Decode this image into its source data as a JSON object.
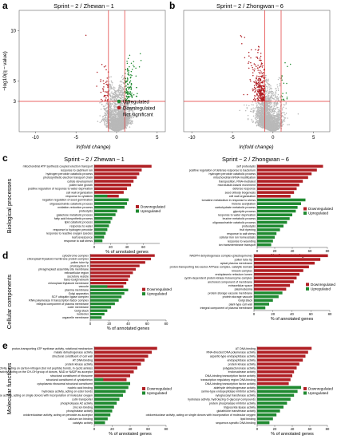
{
  "panels": [
    {
      "letter": "a",
      "type": "volcano",
      "title": "Sprint − 2 / Zhewan − 1",
      "xlabel": "ln(fold change)",
      "ylabel": "−log10(q − value)",
      "xticks": [
        "-10",
        "-5",
        "0",
        "5"
      ],
      "yticks": [
        "3",
        "5",
        "10"
      ],
      "legend": [
        "Upregulated",
        "Downregulated",
        "Not significant"
      ]
    },
    {
      "letter": "b",
      "type": "volcano",
      "title": "Sprint − 2 / Zhongwan − 6",
      "xlabel": "ln(fold change)",
      "xticks": [
        "-10",
        "-5",
        "0",
        "5"
      ]
    }
  ],
  "row_labels": [
    "Biological processes",
    "Cellular components",
    "Molecular functions"
  ],
  "row_letters": [
    "c",
    "d",
    "e"
  ],
  "col_titles": [
    "Sprint − 2 / Zhewan − 1",
    "Sprint − 2 / Zhongwan − 6"
  ],
  "bar_xlabel": "% of annotated genes",
  "bar_legend": [
    "Downregulated",
    "Upregulated"
  ],
  "colors": {
    "down": "#b01f24",
    "up": "#1f8a30",
    "ns": "#b9b9b9",
    "threshold": "#e03030"
  },
  "chart_data": [
    {
      "type": "scatter",
      "panel": "a",
      "xlim": [
        -12,
        6
      ],
      "ylim": [
        0,
        12
      ],
      "thresholds": {
        "x": [
          -1,
          1
        ],
        "y": 3
      },
      "series": [
        {
          "name": "Upregulated"
        },
        {
          "name": "Downregulated"
        },
        {
          "name": "Not significant"
        }
      ]
    },
    {
      "type": "scatter",
      "panel": "b",
      "xlim": [
        -11,
        7
      ],
      "ylim": [
        0,
        12
      ],
      "thresholds": {
        "x": [
          -1,
          1
        ],
        "y": 3
      }
    },
    {
      "type": "bar",
      "panel": "c-left",
      "xlim": [
        0,
        80
      ],
      "xticks": [
        0,
        20,
        40,
        60
      ],
      "categories": [
        "mitochondrial ATP synthesis coupled electron transport",
        "response to cadmium ion",
        "hydrogen peroxide catabolic process",
        "photosynthetic electron transport chain",
        "cuticle development",
        "pollen tube growth",
        "positive regulation of response to water deprivation",
        "cell wall organization",
        "response to cytokinin",
        "negation regulation of seed germination",
        "oligosaccharide catabolic process",
        "oxidation-reduction process",
        "proteolysis",
        "galactose metabolic process",
        "fatty acid biosynthetic process",
        "lipid catabolic process",
        "response to water",
        "response to hydrogen peroxide",
        "response to reactive oxygen species",
        "leaf senescence",
        "response to salt stress"
      ],
      "series": [
        {
          "name": "Downregulated",
          "values": [
            70,
            58,
            55,
            52,
            48,
            45,
            40,
            36,
            30,
            0,
            0,
            0,
            0,
            0,
            0,
            0,
            0,
            0,
            0,
            0,
            0
          ]
        },
        {
          "name": "Upregulated",
          "values": [
            0,
            0,
            0,
            0,
            0,
            0,
            0,
            0,
            16,
            42,
            40,
            37,
            28,
            26,
            22,
            20,
            18,
            16,
            14,
            12,
            10
          ]
        }
      ]
    },
    {
      "type": "bar",
      "panel": "c-right",
      "xlim": [
        0,
        80
      ],
      "xticks": [
        0,
        20,
        40,
        60,
        80
      ],
      "categories": [
        "self proteolysis",
        "positive regulation of defense response to bacterium",
        "hydrogen peroxide catabolic process",
        "mitochondrial mRNA modification",
        "transposition, RNA-mediated",
        "microtubule-based movement",
        "defense response",
        "seed oilbody biogenesis",
        "cell wall organization",
        "tomatine metabolism in response to stress",
        "histone acetylation",
        "carbohydrate metabolic process",
        "glycolytic process",
        "response to water deprivation",
        "leucine metabolic process",
        "oligosaccharide catabolic process",
        "proteolysis",
        "fruit ripening",
        "response to salt stress",
        "cellular iron ion homeostasis",
        "response to wounding",
        "ion transmembrane transport"
      ],
      "series": [
        {
          "name": "Downregulated",
          "values": [
            75,
            68,
            62,
            58,
            52,
            48,
            45,
            42,
            38,
            0,
            0,
            0,
            0,
            0,
            0,
            0,
            0,
            0,
            0,
            0,
            0,
            0
          ]
        },
        {
          "name": "Upregulated",
          "values": [
            0,
            0,
            0,
            0,
            0,
            0,
            0,
            0,
            0,
            55,
            50,
            46,
            44,
            40,
            37,
            34,
            30,
            26,
            22,
            20,
            18,
            16
          ]
        }
      ]
    },
    {
      "type": "bar",
      "panel": "d-left",
      "xlim": [
        0,
        80
      ],
      "xticks": [
        0,
        20,
        40,
        60,
        80
      ],
      "categories": [
        "cytochrome complex",
        "chloroplast thylakoid membrane protein complex",
        "pollen tube tip",
        "photosystem II",
        "phragmoplast assembly site membrane",
        "extracellular region",
        "secretory vesicle",
        "trans-Golgi network",
        "chloroplast thylakoid membrane",
        "vacuole",
        "plasma membrane",
        "Golgi apparatus",
        "SCF ubiquitin ligase complex",
        "RNA polymerase II transcription factor complex",
        "integral component of plasma membrane",
        "outer membrane",
        "Golgi stack",
        "nucleolus",
        "organelle membrane"
      ],
      "series": [
        {
          "name": "Downregulated",
          "values": [
            68,
            64,
            58,
            52,
            48,
            45,
            42,
            40,
            38,
            35,
            0,
            0,
            0,
            0,
            0,
            0,
            0,
            0,
            0
          ]
        },
        {
          "name": "Upregulated",
          "values": [
            0,
            0,
            0,
            0,
            0,
            0,
            0,
            0,
            0,
            18,
            40,
            36,
            33,
            30,
            26,
            22,
            18,
            15,
            12
          ]
        }
      ]
    },
    {
      "type": "bar",
      "panel": "d-right",
      "xlim": [
        0,
        80
      ],
      "xticks": [
        0,
        20,
        40,
        60,
        80
      ],
      "categories": [
        "NADPH dehydrogenase complex (plastoquinone)",
        "pollen tube tip",
        "apical plasma membrane",
        "proton-transporting two-sector ATPase complex, catalytic domain",
        "kinesin complex",
        "endoplasmic reticulum lumen",
        "cyclin-dependent protein kinase holoenzyme complex",
        "anchored component of membrane",
        "extracellular space",
        "plasmodesma",
        "protein storage vacuole membrane",
        "protein storage vacuole",
        "Golgi stack",
        "plant-type cell wall",
        "integral component of plasma membrane"
      ],
      "series": [
        {
          "name": "Downregulated",
          "values": [
            78,
            70,
            64,
            58,
            52,
            48,
            45,
            42,
            38,
            34,
            0,
            0,
            0,
            0,
            0
          ]
        },
        {
          "name": "Upregulated",
          "values": [
            0,
            0,
            0,
            0,
            0,
            0,
            0,
            0,
            0,
            0,
            30,
            26,
            20,
            16,
            12
          ]
        }
      ]
    },
    {
      "type": "bar",
      "panel": "e-left",
      "xlim": [
        0,
        80
      ],
      "xticks": [
        0,
        20,
        40,
        60,
        80
      ],
      "categories": [
        "proton-transporting ATP synthase activity, rotational mechanism",
        "malate dehydrogenase activity",
        "structural constituent of cell wall",
        "AT DNA binding",
        "protein kinase activity",
        "hydrolase activity, acting on carbon-nitrogen (but not peptide) bonds, in cyclic amides",
        "oxidoreductase activity, acting on the CH-OH group of donors, NAD or NADP as acceptor",
        "structural constituent of ribosome",
        "structural constituent of cytoskeleton",
        "cytoplasmic ribosomal structural constituent",
        "nucleic acid binding",
        "hydrolase activity, acting on ester bonds",
        "oxidoreductase activity, acting on single donors with incorporation of molecular oxygen",
        "cutin transporter",
        "phospholipase A2 activity",
        "zinc ion binding",
        "phosphatase activity",
        "oxidoreductase activity, acting on peroxide as acceptor",
        "calcium ion binding",
        "catalytic activity"
      ],
      "series": [
        {
          "name": "Downregulated",
          "values": [
            70,
            64,
            60,
            56,
            52,
            48,
            44,
            40,
            36,
            0,
            0,
            0,
            0,
            0,
            0,
            0,
            0,
            0,
            0,
            0
          ]
        },
        {
          "name": "Upregulated",
          "values": [
            0,
            0,
            0,
            0,
            0,
            0,
            0,
            0,
            10,
            40,
            38,
            35,
            32,
            28,
            25,
            22,
            20,
            18,
            15,
            12
          ]
        }
      ]
    },
    {
      "type": "bar",
      "panel": "e-right",
      "xlim": [
        0,
        80
      ],
      "xticks": [
        0,
        20,
        40,
        60,
        80
      ],
      "categories": [
        "AT DNA binding",
        "RNA-directed DNA polymerase activity",
        "aspartic-type endopeptidase activity",
        "endopeptidase activity",
        "protein kinase activity",
        "polygalacturonase activity",
        "endonuclease activity",
        "DNA-binding transcription factor activity",
        "transcription regulatory region DNA binding",
        "DNA-binding transcription factor activity",
        "aldehyde dehydrogenase activity",
        "serine-type endopeptidase inhibitor activity",
        "xyloglucosyl transferase activity",
        "hydrolase activity, hydrolyzing O-glycosyl compounds",
        "protein phosphatase inhibitor activity",
        "triglyceride lipase activity",
        "glutathione transferase activity",
        "oxidoreductase activity, acting on single donors with incorporation of molecular oxygen",
        "lipid binding",
        "sequence-specific DNA binding"
      ],
      "series": [
        {
          "name": "Downregulated",
          "values": [
            62,
            58,
            55,
            52,
            48,
            45,
            42,
            40,
            38,
            36,
            0,
            0,
            0,
            0,
            0,
            0,
            0,
            0,
            0,
            0
          ]
        },
        {
          "name": "Upregulated",
          "values": [
            0,
            0,
            0,
            0,
            0,
            0,
            0,
            0,
            0,
            0,
            50,
            46,
            42,
            38,
            34,
            30,
            26,
            22,
            18,
            14
          ]
        }
      ]
    }
  ]
}
